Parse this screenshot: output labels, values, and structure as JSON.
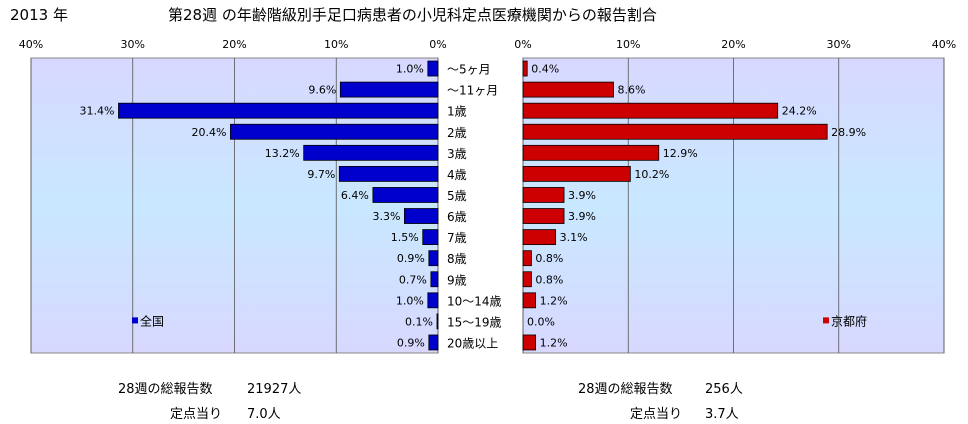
{
  "header": {
    "year": "2013 年",
    "title": "第28週 の年齢階級別手足口病患者の小児科定点医療機関からの報告割合"
  },
  "chart_data": {
    "type": "bar",
    "orientation": "horizontal-butterfly",
    "categories": [
      "～5ヶ月",
      "～11ヶ月",
      "1歳",
      "2歳",
      "3歳",
      "4歳",
      "5歳",
      "6歳",
      "7歳",
      "8歳",
      "9歳",
      "10～14歳",
      "15～19歳",
      "20歳以上"
    ],
    "series": [
      {
        "name": "全国",
        "values": [
          1.0,
          9.6,
          31.4,
          20.4,
          13.2,
          9.7,
          6.4,
          3.3,
          1.5,
          0.9,
          0.7,
          1.0,
          0.1,
          0.9
        ],
        "labels": [
          "1.0%",
          "9.6%",
          "31.4%",
          "20.4%",
          "13.2%",
          "9.7%",
          "6.4%",
          "3.3%",
          "1.5%",
          "0.9%",
          "0.7%",
          "1.0%",
          "0.1%",
          "0.9%"
        ],
        "color": "#0000cc"
      },
      {
        "name": "京都府",
        "values": [
          0.4,
          8.6,
          24.2,
          28.9,
          12.9,
          10.2,
          3.9,
          3.9,
          3.1,
          0.8,
          0.8,
          1.2,
          0.0,
          1.2
        ],
        "labels": [
          "0.4%",
          "8.6%",
          "24.2%",
          "28.9%",
          "12.9%",
          "10.2%",
          "3.9%",
          "3.9%",
          "3.1%",
          "0.8%",
          "0.8%",
          "1.2%",
          "0.0%",
          "1.2%"
        ],
        "color": "#cc0000"
      }
    ],
    "xlim": [
      0,
      40
    ],
    "left_ticks": [
      "40%",
      "30%",
      "20%",
      "10%",
      "0%"
    ],
    "right_ticks": [
      "0%",
      "10%",
      "20%",
      "30%",
      "40%"
    ],
    "plot_background": "#d8d8ff",
    "grid": true
  },
  "stats": {
    "national": {
      "weekly_label": "28週の総報告数",
      "weekly_value": "21927人",
      "per_label": "定点当り",
      "per_value": "7.0人"
    },
    "kyoto": {
      "weekly_label": "28週の総報告数",
      "weekly_value": "256人",
      "per_label": "定点当り",
      "per_value": "3.7人"
    }
  }
}
